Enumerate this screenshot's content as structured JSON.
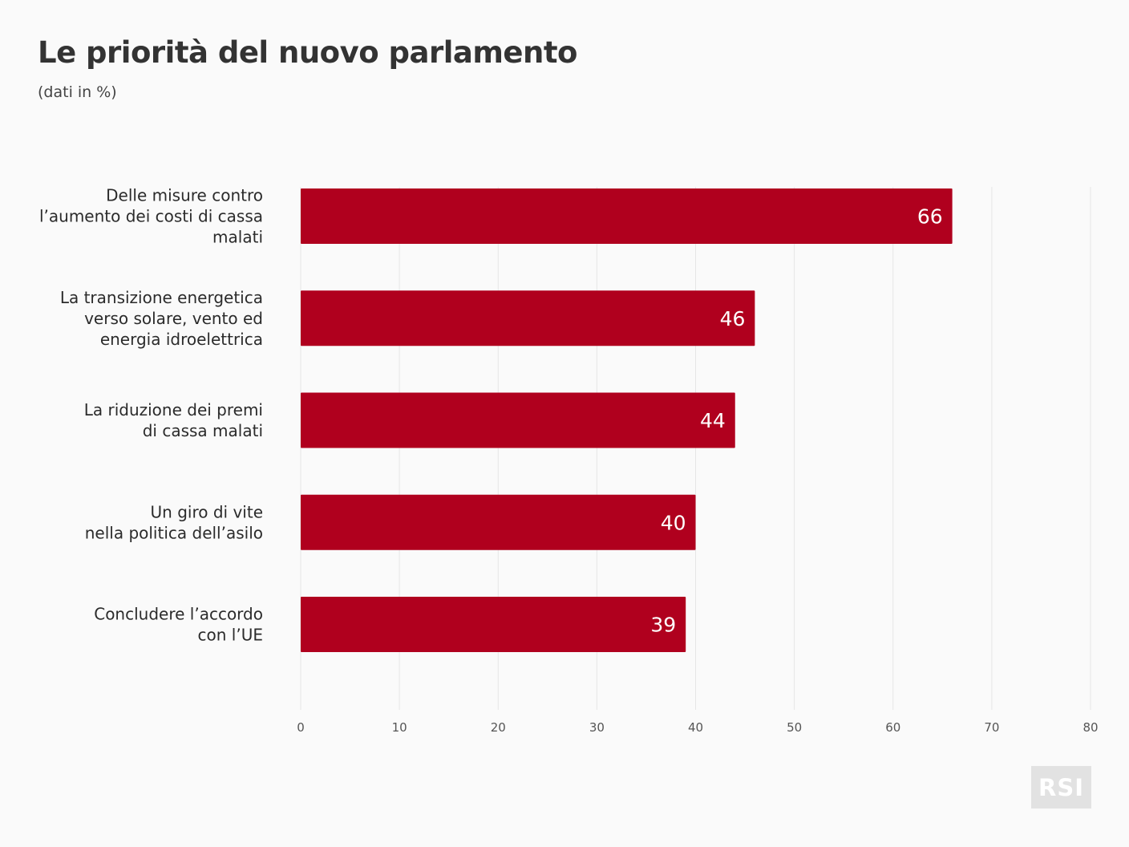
{
  "header": {
    "title": "Le priorità del nuovo parlamento",
    "subtitle": "(dati in %)"
  },
  "logo": {
    "text": "RSI"
  },
  "colors": {
    "bar": "#b0001e",
    "grid": "#e6e6e6",
    "value_text": "#ffffff",
    "background": "#fafafa"
  },
  "chart_data": {
    "type": "bar",
    "orientation": "horizontal",
    "title": "Le priorità del nuovo parlamento",
    "subtitle": "(dati in %)",
    "categories": [
      [
        "Delle misure contro",
        "l’aumento dei costi di cassa",
        "malati"
      ],
      [
        "La transizione energetica",
        "verso solare, vento ed",
        "energia idroelettrica"
      ],
      [
        "La riduzione dei premi",
        "di cassa malati"
      ],
      [
        "Un giro di vite",
        "nella politica dell’asilo"
      ],
      [
        "Concludere l’accordo",
        "con l’UE"
      ]
    ],
    "values": [
      66,
      46,
      44,
      40,
      39
    ],
    "xlim": [
      0,
      80
    ],
    "xticks": [
      0,
      10,
      20,
      30,
      40,
      50,
      60,
      70,
      80
    ],
    "grid": true,
    "data_labels": true
  }
}
